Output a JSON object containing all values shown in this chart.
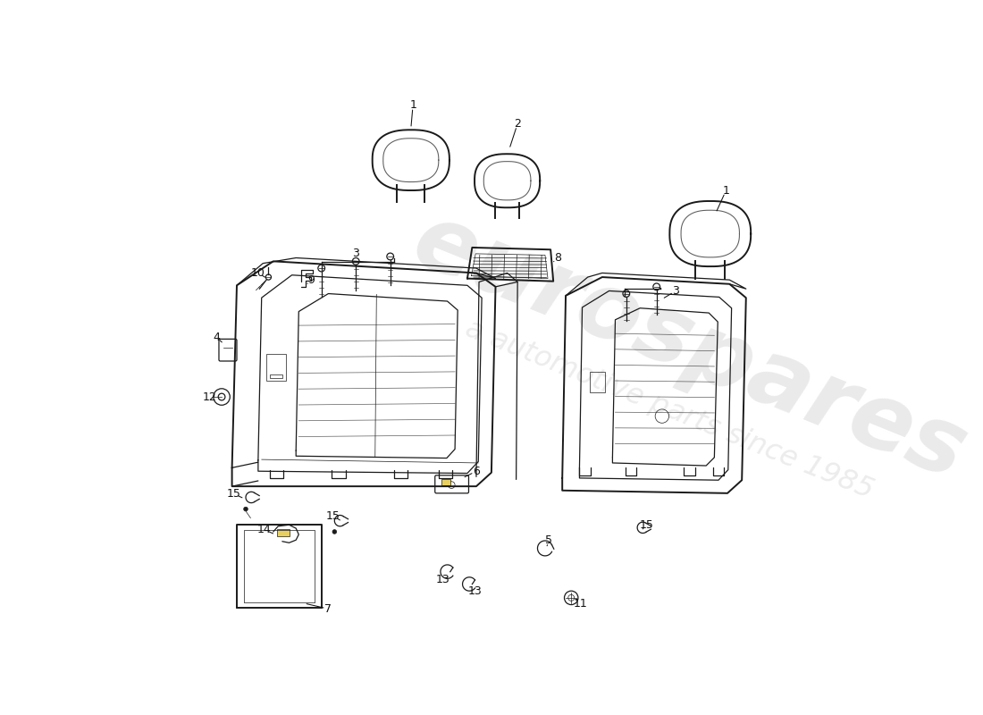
{
  "background_color": "#ffffff",
  "line_color": "#1a1a1a",
  "watermark_color": "#c8c8c8",
  "figsize": [
    11.0,
    8.0
  ],
  "dpi": 100
}
